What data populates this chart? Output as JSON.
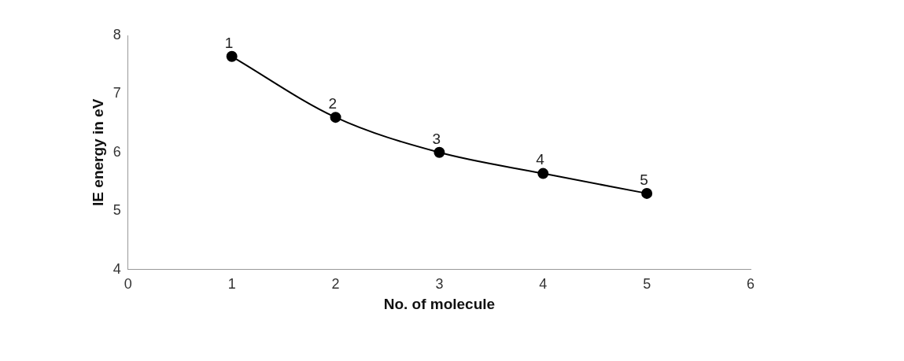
{
  "chart_data": {
    "type": "line",
    "xlabel": "No. of molecule",
    "ylabel": "IE energy in eV",
    "x": [
      1,
      2,
      3,
      4,
      5
    ],
    "series": [
      {
        "color": "#000000",
        "values": [
          7.64,
          6.6,
          6.0,
          5.64,
          5.3
        ]
      }
    ],
    "annotations": [
      {
        "text": "1",
        "x": 1,
        "y": 7.64
      },
      {
        "text": "2",
        "x": 2,
        "y": 6.6
      },
      {
        "text": "3",
        "x": 3,
        "y": 6.0
      },
      {
        "text": "4",
        "x": 4,
        "y": 5.64
      },
      {
        "text": "5",
        "x": 5,
        "y": 5.3
      }
    ],
    "xlim": [
      0,
      6
    ],
    "xticks": [
      0,
      1,
      2,
      3,
      4,
      5,
      6
    ],
    "ylim": [
      4,
      8
    ],
    "yticks": [
      4,
      5,
      6,
      7,
      8
    ],
    "grid": false,
    "legend": false,
    "marker": "circle",
    "line_style": "solid"
  }
}
